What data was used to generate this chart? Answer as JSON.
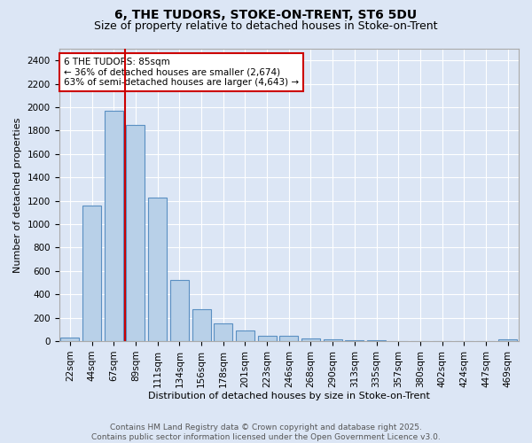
{
  "title1": "6, THE TUDORS, STOKE-ON-TRENT, ST6 5DU",
  "title2": "Size of property relative to detached houses in Stoke-on-Trent",
  "xlabel": "Distribution of detached houses by size in Stoke-on-Trent",
  "ylabel": "Number of detached properties",
  "categories": [
    "22sqm",
    "44sqm",
    "67sqm",
    "89sqm",
    "111sqm",
    "134sqm",
    "156sqm",
    "178sqm",
    "201sqm",
    "223sqm",
    "246sqm",
    "268sqm",
    "290sqm",
    "313sqm",
    "335sqm",
    "357sqm",
    "380sqm",
    "402sqm",
    "424sqm",
    "447sqm",
    "469sqm"
  ],
  "values": [
    30,
    1160,
    1970,
    1850,
    1230,
    520,
    275,
    150,
    90,
    45,
    45,
    20,
    15,
    5,
    5,
    3,
    3,
    2,
    1,
    1,
    15
  ],
  "bar_color": "#b8d0e8",
  "bar_edge_color": "#5a8fc2",
  "background_color": "#dce6f5",
  "grid_color": "#ffffff",
  "vline_color": "#cc0000",
  "vline_x": 3.0,
  "annotation_text": "6 THE TUDORS: 85sqm\n← 36% of detached houses are smaller (2,674)\n63% of semi-detached houses are larger (4,643) →",
  "annotation_box_color": "#ffffff",
  "annotation_box_edge_color": "#cc0000",
  "ylim": [
    0,
    2500
  ],
  "yticks": [
    0,
    200,
    400,
    600,
    800,
    1000,
    1200,
    1400,
    1600,
    1800,
    2000,
    2200,
    2400
  ],
  "footer_text": "Contains HM Land Registry data © Crown copyright and database right 2025.\nContains public sector information licensed under the Open Government Licence v3.0.",
  "title_fontsize": 10,
  "subtitle_fontsize": 9,
  "axis_label_fontsize": 8,
  "tick_fontsize": 7.5,
  "annotation_fontsize": 7.5,
  "footer_fontsize": 6.5
}
